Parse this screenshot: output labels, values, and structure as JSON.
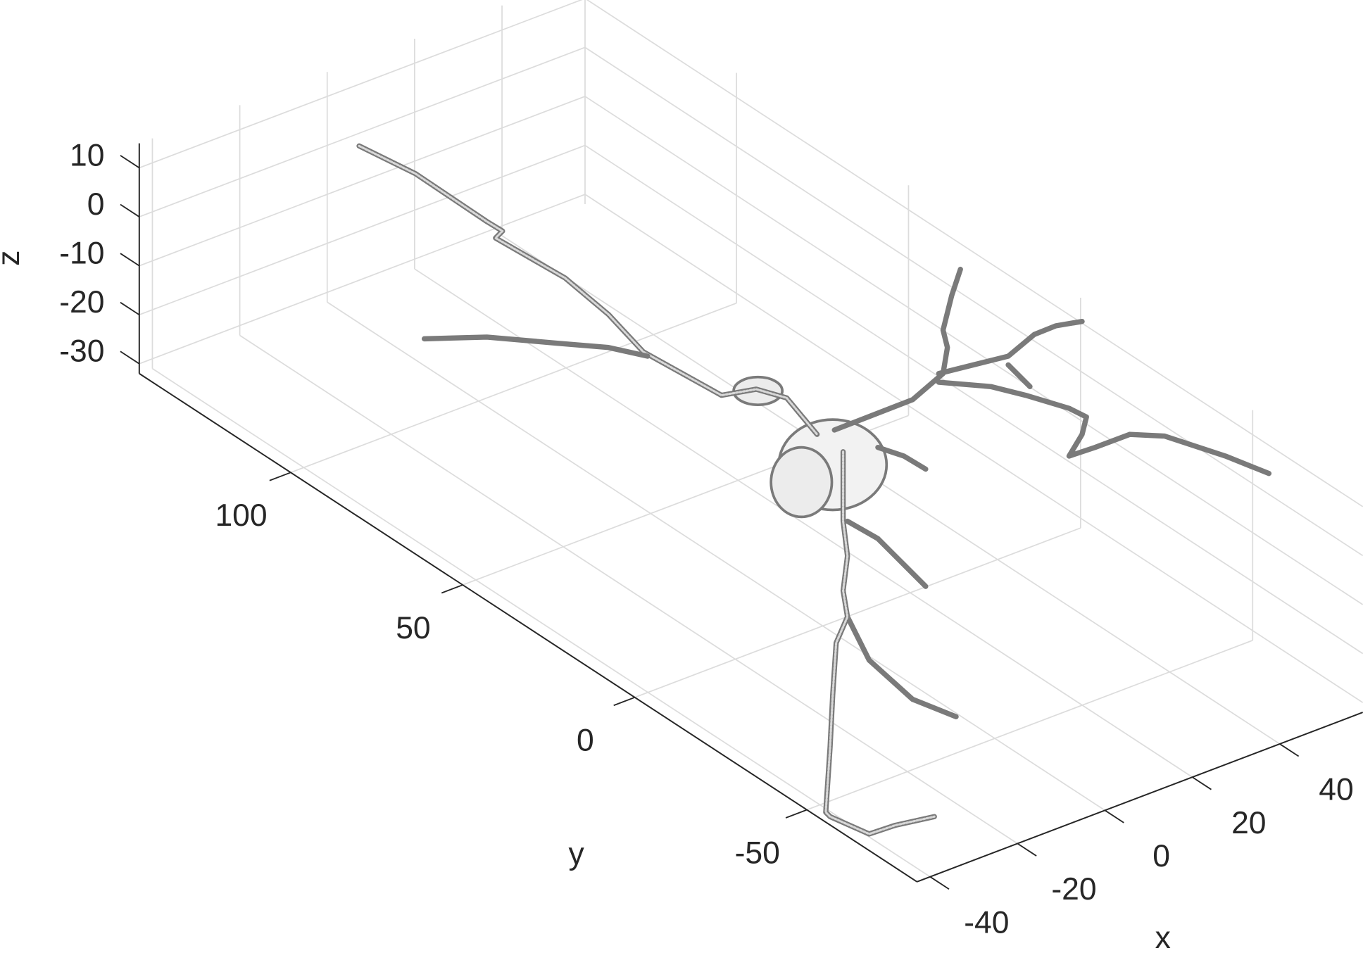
{
  "chart_data": {
    "type": "mesh3d",
    "x_label": "x",
    "y_label": "y",
    "z_label": "z",
    "xlim": [
      -43,
      59
    ],
    "ylim": [
      -82,
      144
    ],
    "zlim": [
      -32,
      15
    ],
    "xticks": [
      -40,
      -20,
      0,
      20,
      40
    ],
    "yticks": [
      -50,
      0,
      50,
      100
    ],
    "zticks": [
      -30,
      -20,
      -10,
      0,
      10
    ],
    "grid": true,
    "color": "#7a7a7a"
  }
}
